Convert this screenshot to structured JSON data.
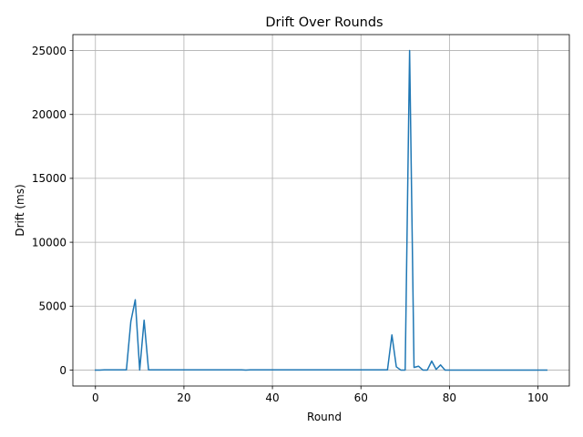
{
  "chart_data": {
    "type": "line",
    "title": "Drift Over Rounds",
    "xlabel": "Round",
    "ylabel": "Drift (ms)",
    "xlim": [
      -5.1,
      107.1
    ],
    "ylim": [
      -1250,
      26250
    ],
    "xticks": [
      0,
      20,
      40,
      60,
      80,
      100
    ],
    "yticks": [
      0,
      5000,
      10000,
      15000,
      20000,
      25000
    ],
    "grid": true,
    "series": [
      {
        "color": "#1f77b4",
        "x": [
          0,
          1,
          2,
          3,
          4,
          5,
          6,
          7,
          8,
          9,
          10,
          11,
          12,
          13,
          14,
          15,
          16,
          17,
          18,
          19,
          20,
          21,
          22,
          23,
          24,
          25,
          26,
          27,
          28,
          29,
          30,
          31,
          32,
          33,
          34,
          35,
          36,
          37,
          38,
          39,
          40,
          41,
          42,
          43,
          44,
          45,
          46,
          47,
          48,
          49,
          50,
          51,
          52,
          53,
          54,
          55,
          56,
          57,
          58,
          59,
          60,
          61,
          62,
          63,
          64,
          65,
          66,
          67,
          68,
          69,
          70,
          71,
          72,
          73,
          74,
          75,
          76,
          77,
          78,
          79,
          80,
          81,
          82,
          83,
          84,
          85,
          86,
          87,
          88,
          89,
          90,
          91,
          92,
          93,
          94,
          95,
          96,
          97,
          98,
          99,
          100,
          101,
          102
        ],
        "y": [
          0,
          0,
          10,
          10,
          10,
          10,
          10,
          10,
          3800,
          5500,
          0,
          3900,
          10,
          10,
          10,
          10,
          10,
          10,
          10,
          10,
          10,
          10,
          10,
          10,
          10,
          10,
          10,
          10,
          10,
          10,
          10,
          10,
          10,
          10,
          0,
          10,
          10,
          10,
          10,
          10,
          10,
          10,
          10,
          10,
          10,
          10,
          10,
          10,
          10,
          10,
          10,
          10,
          10,
          10,
          10,
          10,
          10,
          10,
          10,
          10,
          10,
          10,
          10,
          10,
          10,
          10,
          10,
          2750,
          250,
          0,
          0,
          25000,
          200,
          300,
          0,
          0,
          700,
          50,
          400,
          0,
          0,
          0,
          0,
          0,
          0,
          0,
          0,
          0,
          0,
          0,
          0,
          0,
          0,
          0,
          0,
          0,
          0,
          0,
          0,
          0,
          0,
          0,
          0
        ]
      }
    ]
  }
}
